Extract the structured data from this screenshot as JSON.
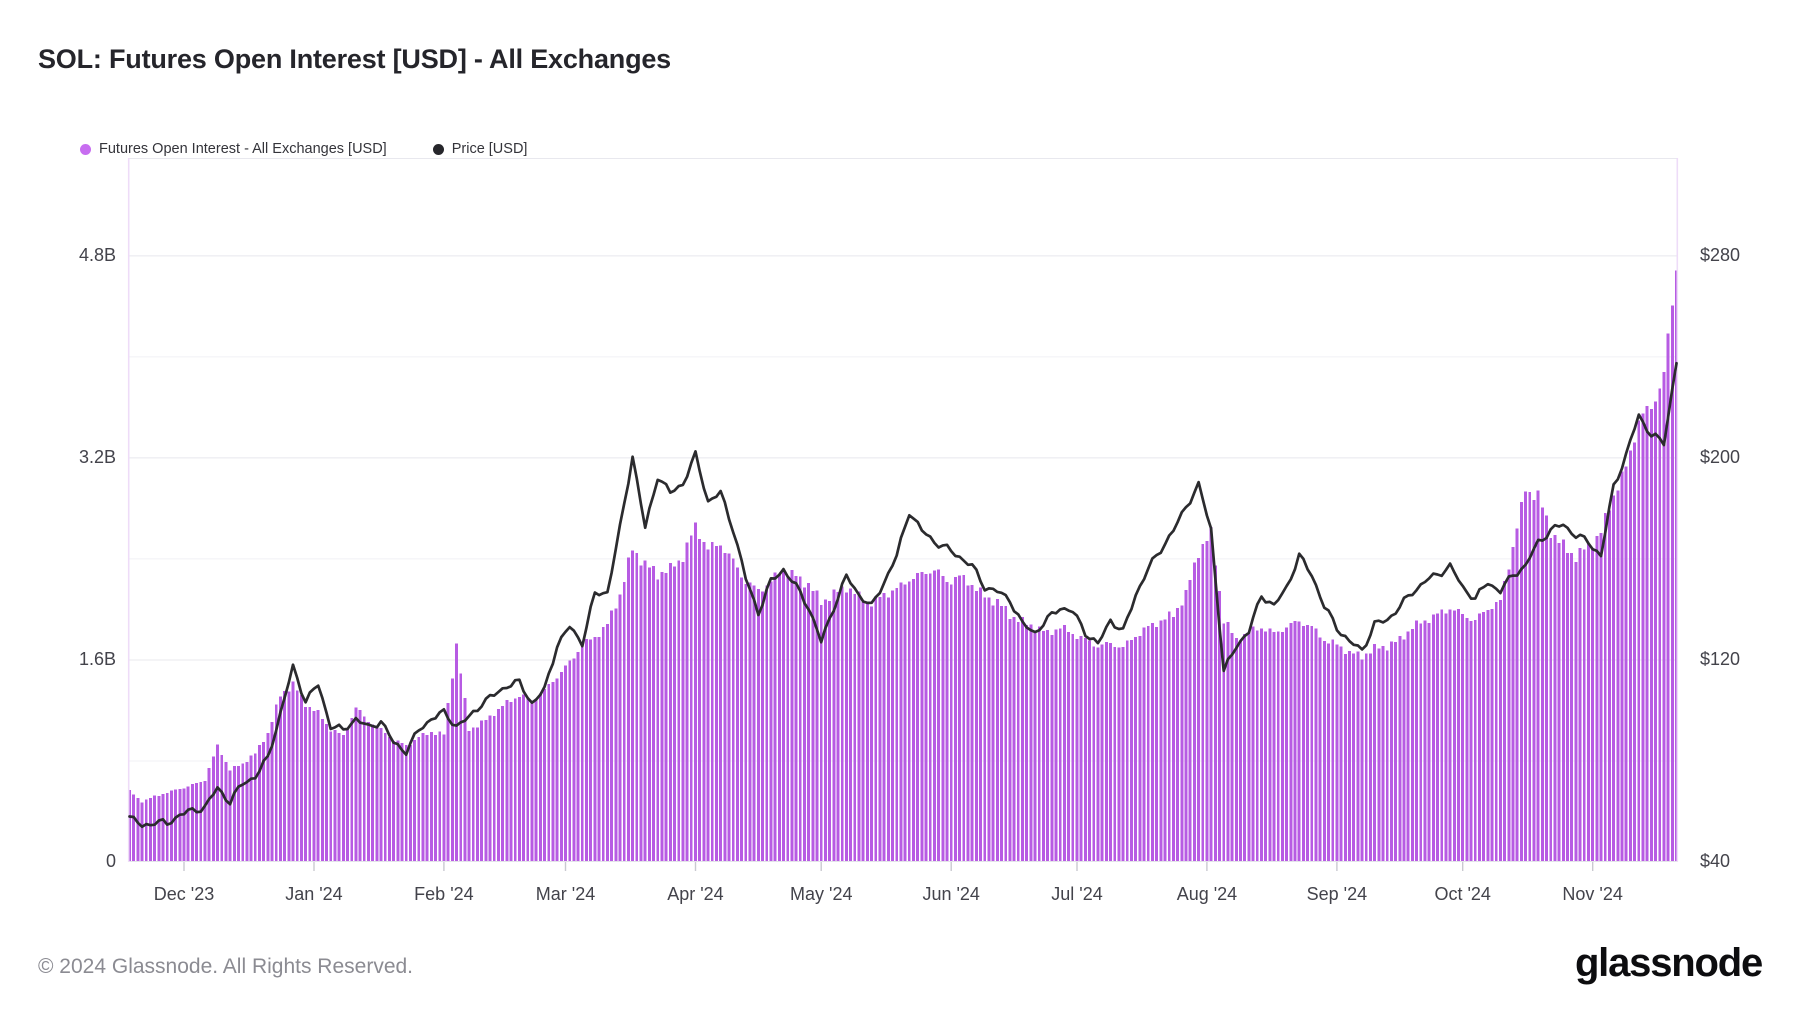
{
  "title": "SOL: Futures Open Interest [USD] - All Exchanges",
  "legend": {
    "items": [
      {
        "label": "Futures Open Interest - All Exchanges [USD]",
        "color": "#c76df0"
      },
      {
        "label": "Price [USD]",
        "color": "#26262b"
      }
    ]
  },
  "footer": {
    "copyright": "© 2024 Glassnode. All Rights Reserved.",
    "brand": "glassnode"
  },
  "chart_data": {
    "type": "bar",
    "title": "SOL: Futures Open Interest [USD] - All Exchanges",
    "start_date": "2023-11-18",
    "sample_interval_days": 3,
    "grid": true,
    "legend_position": "top-left",
    "colors": {
      "bar": "#b75be3",
      "line": "#2b2b2e",
      "grid_major": "#e8e8ee",
      "grid_minor": "#f1f1f5",
      "baseline": "#e3e3e9",
      "plot_border": "#eedcf8",
      "tick": "#c9c9d0"
    },
    "y_left": {
      "label": "Futures Open Interest [USD]",
      "unit": "B",
      "max": 5.575,
      "ticks": [
        {
          "label": "0",
          "value": 0
        },
        {
          "label": "1.6B",
          "value": 1.6
        },
        {
          "label": "3.2B",
          "value": 3.2
        },
        {
          "label": "4.8B",
          "value": 4.8
        }
      ],
      "minor_gridlines": [
        0.8,
        2.4,
        4.0
      ]
    },
    "y_right": {
      "label": "Price [USD]",
      "unit": "$",
      "min": 40,
      "max": 318.8,
      "ticks": [
        {
          "label": "$40",
          "value": 40
        },
        {
          "label": "$120",
          "value": 120
        },
        {
          "label": "$200",
          "value": 200
        },
        {
          "label": "$280",
          "value": 280
        }
      ]
    },
    "x_ticks": [
      {
        "label": "Dec '23",
        "day": 13
      },
      {
        "label": "Jan '24",
        "day": 44
      },
      {
        "label": "Feb '24",
        "day": 75
      },
      {
        "label": "Mar '24",
        "day": 104
      },
      {
        "label": "Apr '24",
        "day": 135
      },
      {
        "label": "May '24",
        "day": 165
      },
      {
        "label": "Jun '24",
        "day": 196
      },
      {
        "label": "Jul '24",
        "day": 226
      },
      {
        "label": "Aug '24",
        "day": 257
      },
      {
        "label": "Sep '24",
        "day": 288
      },
      {
        "label": "Oct '24",
        "day": 318
      },
      {
        "label": "Nov '24",
        "day": 349
      }
    ],
    "series": [
      {
        "name": "Futures Open Interest - All Exchanges [USD]",
        "type": "bar",
        "axis": "left",
        "unit": "billion USD",
        "values": [
          0.56,
          0.48,
          0.52,
          0.55,
          0.58,
          0.61,
          0.65,
          0.92,
          0.73,
          0.78,
          0.86,
          1.02,
          1.32,
          1.41,
          1.25,
          1.18,
          1.05,
          1.0,
          1.22,
          1.12,
          1.05,
          0.97,
          0.92,
          0.99,
          1.03,
          1.01,
          1.72,
          1.05,
          1.1,
          1.18,
          1.26,
          1.32,
          1.28,
          1.36,
          1.47,
          1.58,
          1.72,
          1.78,
          1.88,
          2.12,
          2.48,
          2.36,
          2.28,
          2.32,
          2.42,
          2.66,
          2.48,
          2.52,
          2.38,
          2.22,
          2.15,
          2.22,
          2.32,
          2.26,
          2.2,
          2.06,
          2.12,
          2.18,
          2.1,
          2.05,
          2.12,
          2.16,
          2.24,
          2.28,
          2.32,
          2.22,
          2.26,
          2.2,
          2.1,
          2.06,
          1.96,
          1.9,
          1.86,
          1.81,
          1.86,
          1.81,
          1.76,
          1.71,
          1.73,
          1.7,
          1.79,
          1.86,
          1.91,
          1.96,
          2.12,
          2.46,
          2.6,
          1.92,
          1.76,
          1.82,
          1.86,
          1.81,
          1.86,
          1.91,
          1.86,
          1.76,
          1.72,
          1.66,
          1.63,
          1.69,
          1.71,
          1.76,
          1.86,
          1.91,
          1.96,
          2.01,
          1.96,
          1.91,
          2.01,
          2.06,
          2.5,
          2.95,
          2.9,
          2.62,
          2.5,
          2.42,
          2.5,
          2.61,
          2.91,
          3.12,
          3.5,
          3.6,
          3.85,
          4.72
        ]
      },
      {
        "name": "Price [USD]",
        "type": "line",
        "axis": "right",
        "unit": "USD",
        "values": [
          58,
          54,
          56,
          55,
          59,
          60,
          62,
          69,
          64,
          71,
          74,
          81,
          99,
          117,
          104,
          110,
          94,
          92,
          97,
          93,
          96,
          87,
          84,
          92,
          97,
          99,
          94,
          97,
          103,
          106,
          110,
          111,
          103,
          108,
          126,
          133,
          127,
          146,
          147,
          172,
          201,
          172,
          193,
          186,
          190,
          201,
          183,
          186,
          172,
          152,
          139,
          151,
          156,
          149,
          141,
          127,
          141,
          153,
          146,
          141,
          151,
          161,
          179,
          171,
          167,
          164,
          161,
          157,
          149,
          147,
          144,
          134,
          131,
          136,
          141,
          139,
          131,
          126,
          136,
          131,
          146,
          156,
          164,
          171,
          181,
          189,
          172,
          115,
          126,
          131,
          146,
          141,
          149,
          161,
          154,
          141,
          133,
          127,
          124,
          134,
          136,
          141,
          147,
          151,
          154,
          157,
          149,
          144,
          151,
          147,
          154,
          157,
          167,
          171,
          174,
          169,
          167,
          161,
          189,
          201,
          217,
          209,
          206,
          238
        ]
      }
    ]
  }
}
